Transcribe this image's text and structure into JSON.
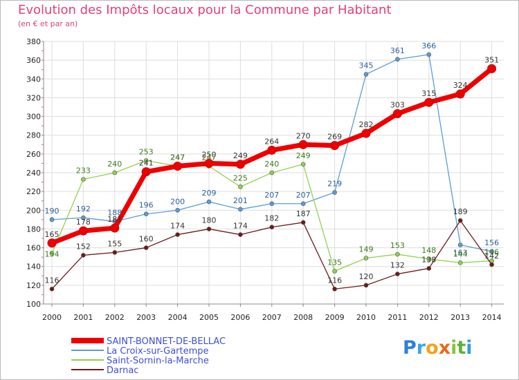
{
  "header": {
    "title": "Evolution des Impôts locaux pour la Commune par Habitant",
    "subtitle": "(en € et par an)"
  },
  "logo": {
    "text": "Proxiti",
    "letters": [
      {
        "ch": "P",
        "color": "#2e7fd8"
      },
      {
        "ch": "r",
        "color": "#3aa8e0"
      },
      {
        "ch": "o",
        "color": "#f2a21c"
      },
      {
        "ch": "x",
        "color": "#e86a1c"
      },
      {
        "ch": "i",
        "color": "#8ac43f"
      },
      {
        "ch": "t",
        "color": "#5fb03a"
      },
      {
        "ch": "i",
        "color": "#2e9fd8"
      }
    ]
  },
  "chart_data": {
    "type": "line",
    "title": "Evolution des Impôts locaux pour la Commune par Habitant",
    "subtitle": "(en € et par an)",
    "x": [
      "2000",
      "2001",
      "2002",
      "2003",
      "2004",
      "2005",
      "2006",
      "2007",
      "2008",
      "2009",
      "2010",
      "2011",
      "2012",
      "2013",
      "2014"
    ],
    "ylim": [
      100,
      380
    ],
    "yticks": [
      100,
      120,
      140,
      160,
      180,
      200,
      220,
      240,
      260,
      280,
      300,
      320,
      340,
      360,
      380
    ],
    "grid": true,
    "legend_position": "bottom-left",
    "series": [
      {
        "name": "SAINT-BONNET-DE-BELLAC",
        "color": "#ee0000",
        "values": [
          165,
          178,
          181,
          241,
          247,
          250,
          249,
          264,
          270,
          269,
          282,
          303,
          315,
          324,
          351
        ],
        "bold": true
      },
      {
        "name": "La Croix-sur-Gartempe",
        "color": "#5b9bd5",
        "values": [
          190,
          192,
          188,
          196,
          200,
          209,
          201,
          207,
          207,
          219,
          345,
          361,
          366,
          163,
          156
        ],
        "bold": false
      },
      {
        "name": "Saint-Sornin-la-Marche",
        "color": "#8fd14f",
        "values": [
          154,
          233,
          240,
          253,
          247,
          247,
          225,
          240,
          249,
          135,
          149,
          153,
          148,
          144,
          146
        ],
        "bold": false
      },
      {
        "name": "Darnac",
        "color": "#6b1a1a",
        "values": [
          116,
          152,
          155,
          160,
          174,
          180,
          174,
          182,
          187,
          116,
          120,
          132,
          138,
          189,
          142
        ],
        "bold": false
      }
    ],
    "data_labels": {
      "SAINT-BONNET-DE-BELLAC": [
        "165",
        "178",
        "181",
        "241",
        "247",
        "250",
        "249",
        "264",
        "270",
        "269",
        "282",
        "303",
        "315",
        "324",
        "351"
      ],
      "La Croix-sur-Gartempe": [
        "190",
        "192",
        "188",
        "196",
        "200",
        "209",
        "201",
        "207",
        "207",
        "219",
        "345",
        "361",
        "366",
        "163",
        "156"
      ],
      "Saint-Sornin-la-Marche": [
        "154",
        "233",
        "240",
        "253",
        "247",
        "247",
        "225",
        "240",
        "249",
        "135",
        "149",
        "153",
        "148",
        "144",
        "146"
      ],
      "Darnac": [
        "116",
        "152",
        "155",
        "160",
        "174",
        "180",
        "174",
        "182",
        "187",
        "116",
        "120",
        "132",
        "138",
        "189",
        "142"
      ]
    }
  }
}
